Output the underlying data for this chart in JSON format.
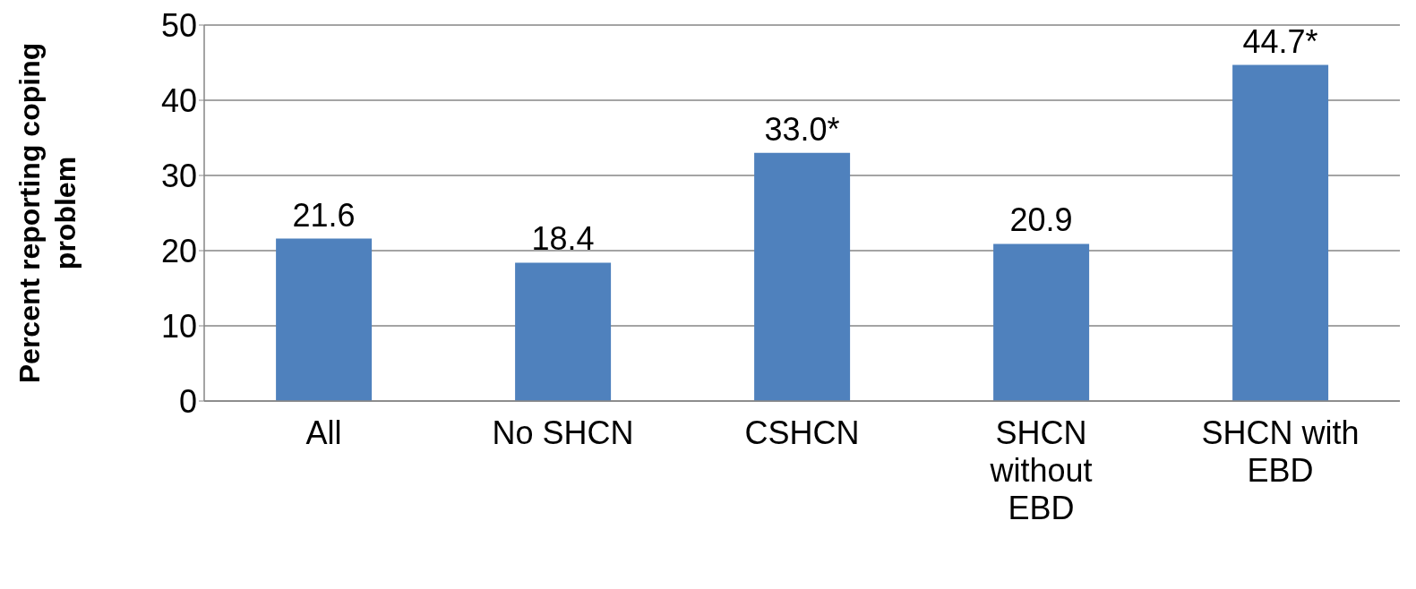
{
  "chart_data": {
    "type": "bar",
    "ylabel": "Percent reporting coping problem",
    "categories": [
      "All",
      "No SHCN",
      "CSHCN",
      "SHCN without EBD",
      "SHCN with EBD"
    ],
    "values": [
      21.6,
      18.4,
      33.0,
      20.9,
      44.7
    ],
    "value_labels": [
      "21.6",
      "18.4",
      "33.0*",
      "20.9",
      "44.7*"
    ],
    "color": "#4f81bd",
    "ylim": [
      0,
      50
    ],
    "yticks": [
      0,
      10,
      20,
      30,
      40,
      50
    ],
    "grid": "y"
  }
}
